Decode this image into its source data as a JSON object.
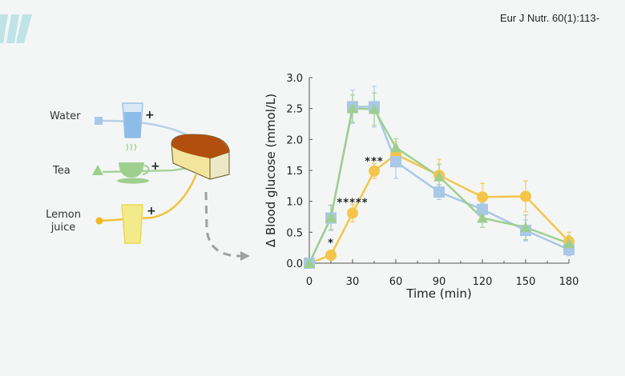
{
  "citation": "Eur J Nutr. 60(1):113-",
  "illustration": {
    "drinks": [
      {
        "label": "Water",
        "color": "#a8c8e8",
        "marker": "square"
      },
      {
        "label": "Tea",
        "color": "#9fcf8e",
        "marker": "triangle"
      },
      {
        "label": "Lemon juice",
        "color": "#f5c54a",
        "marker": "circle"
      }
    ],
    "plus": "+",
    "food": "bread"
  },
  "chart_data": {
    "type": "line",
    "title": "",
    "xlabel": "Time (min)",
    "ylabel": "Δ Blood glucose (mmol/L)",
    "xlim": [
      0,
      180
    ],
    "ylim": [
      0,
      3.0
    ],
    "xticks": [
      0,
      30,
      60,
      90,
      120,
      150,
      180
    ],
    "yticks": [
      "0.0",
      "0.5",
      "1.0",
      "1.5",
      "2.0",
      "2.5",
      "3.0"
    ],
    "grid": false,
    "x": [
      0,
      15,
      30,
      45,
      60,
      90,
      120,
      150,
      180
    ],
    "series": [
      {
        "name": "Water",
        "marker": "square",
        "color": "#a8c8e8",
        "values": [
          0,
          0.73,
          2.53,
          2.53,
          1.64,
          1.15,
          0.87,
          0.53,
          0.22
        ],
        "errors": [
          0,
          0.2,
          0.27,
          0.33,
          0.27,
          0.12,
          0.1,
          0.17,
          0.1
        ]
      },
      {
        "name": "Tea",
        "marker": "triangle",
        "color": "#9fcf8e",
        "values": [
          0,
          0.74,
          2.5,
          2.49,
          1.87,
          1.4,
          0.73,
          0.58,
          0.32
        ],
        "errors": [
          0,
          0.2,
          0.22,
          0.26,
          0.14,
          0.2,
          0.15,
          0.2,
          0.12
        ]
      },
      {
        "name": "Lemon juice",
        "marker": "circle",
        "color": "#f5c54a",
        "values": [
          0,
          0.13,
          0.81,
          1.49,
          1.76,
          1.42,
          1.07,
          1.08,
          0.35
        ],
        "errors": [
          0,
          0.08,
          0.14,
          0.12,
          0.2,
          0.26,
          0.22,
          0.25,
          0.15
        ]
      }
    ],
    "annotations": [
      {
        "text": "*",
        "x": 15,
        "y": 0.35
      },
      {
        "text": "*****",
        "x": 30,
        "y": 1.0
      },
      {
        "text": "***",
        "x": 45,
        "y": 1.67
      }
    ]
  }
}
